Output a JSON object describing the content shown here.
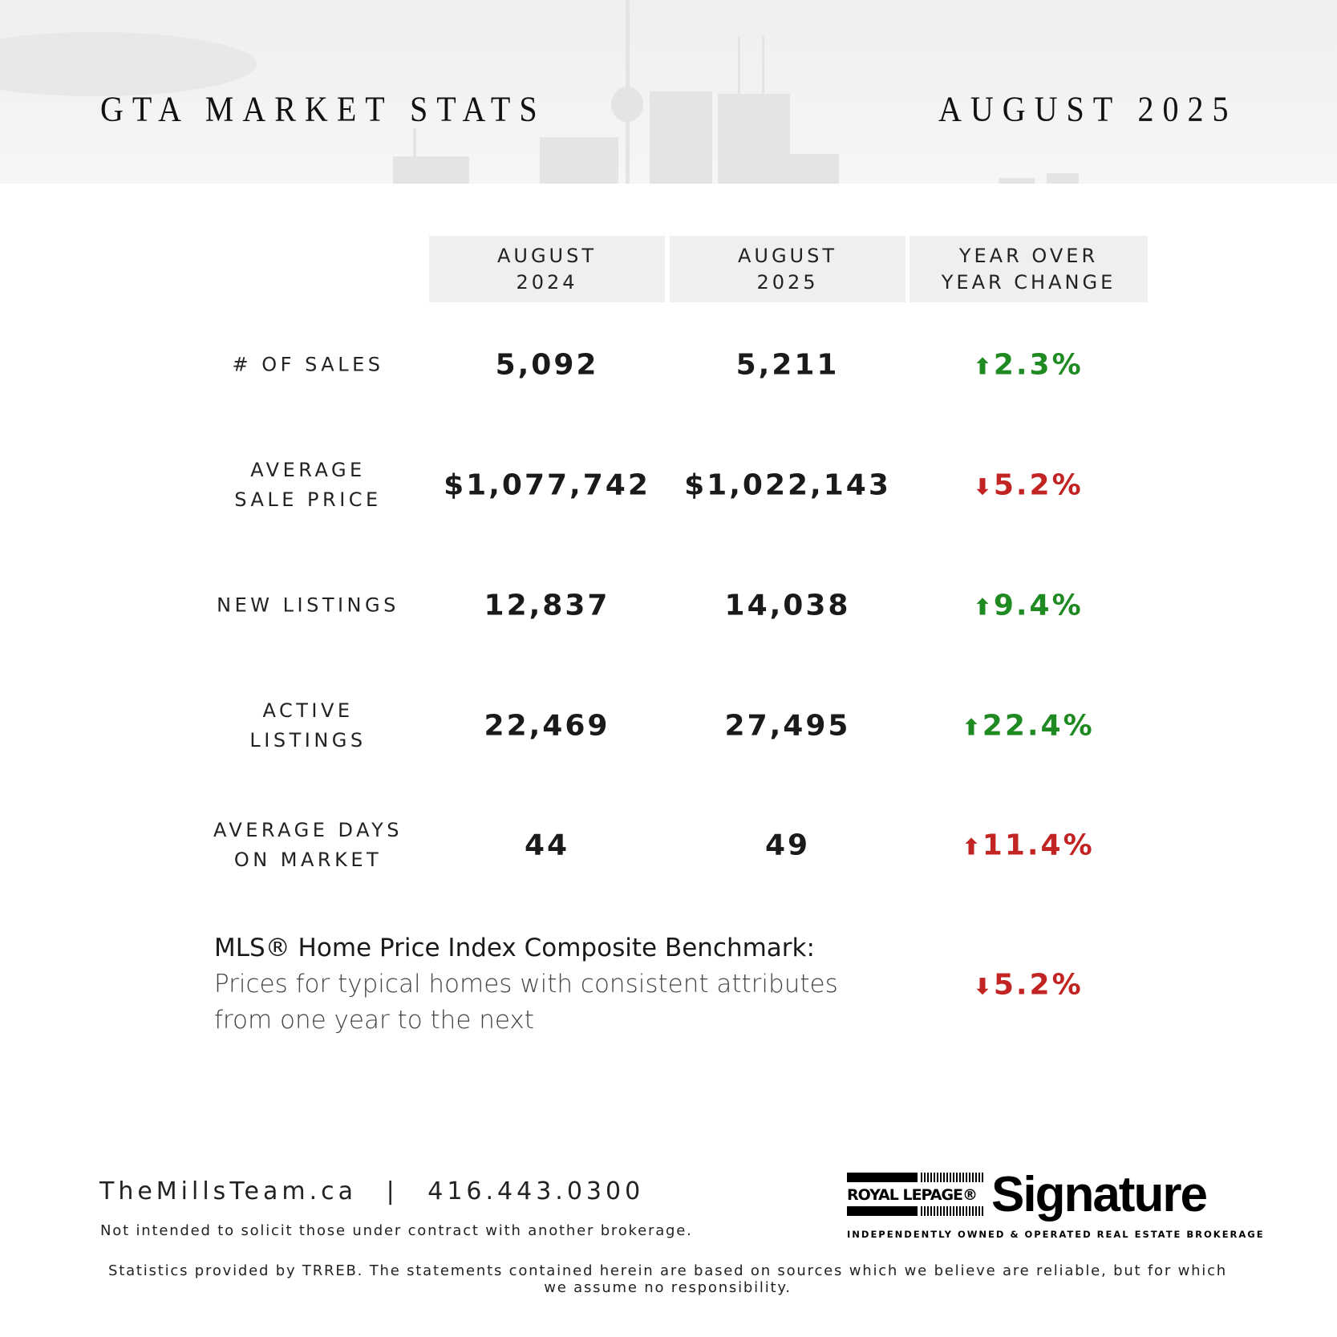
{
  "header": {
    "title": "GTA MARKET STATS",
    "period": "AUGUST 2025"
  },
  "columns": [
    {
      "line1": "AUGUST",
      "line2": "2024"
    },
    {
      "line1": "AUGUST",
      "line2": "2025"
    },
    {
      "line1": "YEAR OVER",
      "line2": "YEAR CHANGE"
    }
  ],
  "rows": [
    {
      "label1": "# OF SALES",
      "label2": "",
      "v2024": "5,092",
      "v2025": "5,211",
      "change": "2.3%",
      "direction": "up",
      "color": "#1f8a22"
    },
    {
      "label1": "AVERAGE",
      "label2": "SALE PRICE",
      "v2024": "$1,077,742",
      "v2025": "$1,022,143",
      "change": "5.2%",
      "direction": "down",
      "color": "#c22323"
    },
    {
      "label1": "NEW LISTINGS",
      "label2": "",
      "v2024": "12,837",
      "v2025": "14,038",
      "change": "9.4%",
      "direction": "up",
      "color": "#1f8a22"
    },
    {
      "label1": "ACTIVE",
      "label2": "LISTINGS",
      "v2024": "22,469",
      "v2025": "27,495",
      "change": "22.4%",
      "direction": "up",
      "color": "#1f8a22"
    },
    {
      "label1": "AVERAGE DAYS",
      "label2": "ON MARKET",
      "v2024": "44",
      "v2025": "49",
      "change": "11.4%",
      "direction": "up",
      "color": "#c22323"
    }
  ],
  "benchmark": {
    "title": "MLS® Home Price Index Composite Benchmark:",
    "line1": "Prices for typical homes with consistent attributes",
    "line2": "from one year to the next",
    "change": "5.2%",
    "direction": "down",
    "color": "#c22323"
  },
  "footer": {
    "website": "TheMillsTeam.ca",
    "separator": "|",
    "phone": "416.443.0300",
    "note": "Not intended to solicit those under contract with another brokerage.",
    "disclaimer": "Statistics provided by TRREB. The statements contained herein are based on sources which we believe are reliable, but for which we assume no responsibility."
  },
  "logo": {
    "brand": "ROYAL LEPAGE®",
    "name": "Signature",
    "tagline": "INDEPENDENTLY OWNED & OPERATED REAL ESTATE BROKERAGE"
  }
}
